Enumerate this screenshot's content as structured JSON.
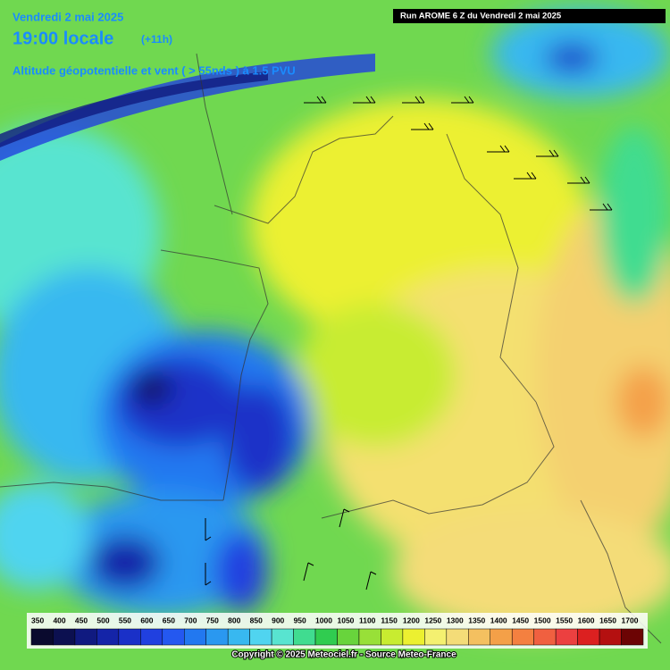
{
  "header": {
    "date": "Vendredi 2 mai 2025",
    "time": "19:00 locale",
    "lead": "(+11h)",
    "subtitle": "Altitude géopotentielle et vent ( > 55nds ) à 1.5 PVU",
    "run": "Run AROME 6 Z du Vendredi 2 mai 2025"
  },
  "legend": {
    "levels": [
      350,
      400,
      450,
      500,
      550,
      600,
      650,
      700,
      750,
      800,
      850,
      900,
      950,
      1000,
      1050,
      1100,
      1150,
      1200,
      1250,
      1300,
      1350,
      1400,
      1450,
      1500,
      1550,
      1600,
      1650,
      1700
    ],
    "colors": [
      "#0a0a2e",
      "#0c1050",
      "#101a80",
      "#1424a8",
      "#1a30c8",
      "#2040e0",
      "#2458f0",
      "#2278f0",
      "#2a98f0",
      "#38b8f0",
      "#50d4f0",
      "#58e4d0",
      "#40dc90",
      "#30cc50",
      "#68d43c",
      "#98e038",
      "#c8ec30",
      "#ecf030",
      "#f4f070",
      "#f4dc78",
      "#f4c060",
      "#f4a048",
      "#f48040",
      "#f06040",
      "#ec4040",
      "#dc2020",
      "#b41010",
      "#6c0404"
    ]
  },
  "footer": "Copyright © 2025 Meteociel.fr - Source Meteo-France"
}
